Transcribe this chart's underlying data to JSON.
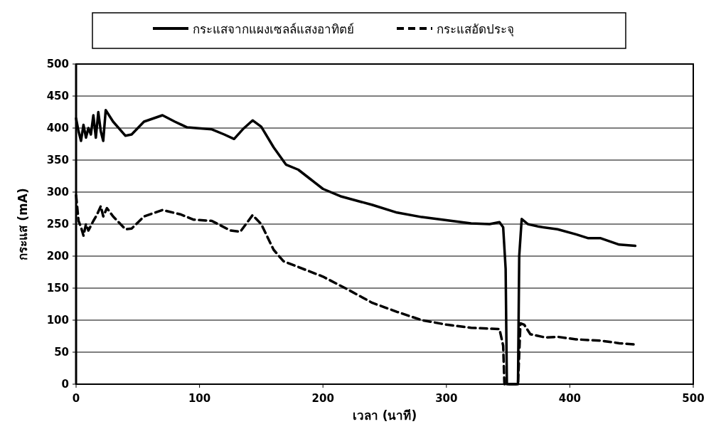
{
  "chart_data": {
    "type": "line",
    "xlabel": "เวลา (นาที)",
    "ylabel": "กระแส (mA)",
    "x": [
      0,
      2,
      4,
      6,
      8,
      10,
      12,
      14,
      16,
      18,
      20,
      22,
      24,
      30,
      40,
      45,
      55,
      70,
      80,
      90,
      110,
      120,
      128,
      135,
      143,
      150,
      160,
      170,
      180,
      190,
      200,
      215,
      240,
      260,
      280,
      300,
      320,
      335,
      343,
      346,
      348,
      349,
      358,
      359,
      361,
      366,
      375,
      390,
      405,
      415,
      425,
      440,
      453
    ],
    "series": [
      {
        "name": "กระแสจากแผงเซลล์แสงอาทิตย์",
        "color": "#000000",
        "line_style": "solid",
        "values": [
          415,
          395,
          380,
          405,
          385,
          400,
          390,
          420,
          385,
          425,
          395,
          380,
          428,
          410,
          388,
          390,
          410,
          420,
          410,
          401,
          398,
          390,
          383,
          398,
          412,
          402,
          370,
          343,
          335,
          320,
          305,
          293,
          280,
          268,
          261,
          256,
          251,
          250,
          253,
          245,
          180,
          0,
          0,
          200,
          258,
          250,
          246,
          242,
          234,
          228,
          228,
          218,
          216
        ]
      },
      {
        "name": "กระแสอัดประจุ",
        "color": "#000000",
        "line_style": "dashed",
        "x": [
          0,
          2,
          4,
          6,
          8,
          10,
          14,
          17,
          20,
          22,
          25,
          30,
          40,
          45,
          55,
          70,
          85,
          95,
          110,
          125,
          133,
          143,
          150,
          160,
          168,
          180,
          200,
          220,
          240,
          260,
          280,
          300,
          320,
          343,
          346,
          347,
          358,
          360,
          363,
          368,
          380,
          390,
          405,
          425,
          440,
          453
        ],
        "values": [
          295,
          255,
          245,
          232,
          250,
          240,
          255,
          265,
          278,
          262,
          275,
          262,
          242,
          243,
          262,
          272,
          265,
          257,
          255,
          240,
          238,
          264,
          250,
          210,
          192,
          183,
          168,
          148,
          127,
          113,
          100,
          93,
          88,
          86,
          60,
          0,
          0,
          95,
          93,
          78,
          73,
          74,
          70,
          68,
          64,
          62
        ]
      }
    ],
    "xlim": [
      0,
      500
    ],
    "xticks": [
      0,
      100,
      200,
      300,
      400,
      500
    ],
    "ylim": [
      0,
      500
    ],
    "yticks": [
      0,
      50,
      100,
      150,
      200,
      250,
      300,
      350,
      400,
      450,
      500
    ],
    "grid": "y",
    "legend": "top"
  }
}
